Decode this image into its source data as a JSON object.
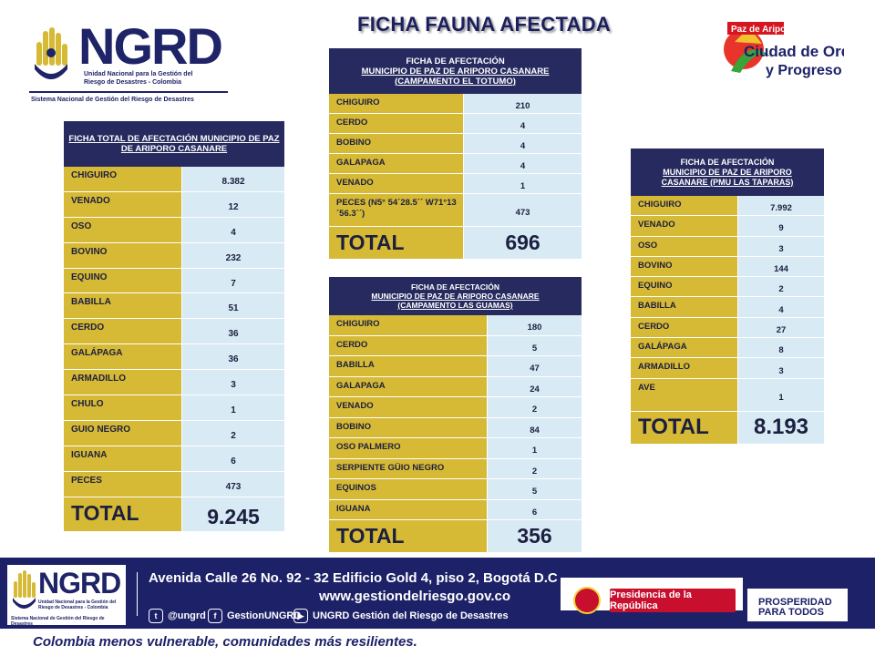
{
  "title": "FICHA FAUNA AFECTADA",
  "logo_top": {
    "word": "NGRD",
    "line1": "Unidad Nacional para la Gestión del",
    "line2": "Riesgo de Desastres - Colombia",
    "line3": "Sistema Nacional de Gestión del Riesgo de Desastres"
  },
  "city_logo": {
    "line1": "Paz de Ariporo",
    "line2": "Ciudad de Orden",
    "line3": "y Progreso"
  },
  "table_total": {
    "header": "FICHA TOTAL DE AFECTACIÓN MUNICIPIO DE PAZ DE ARIPORO CASANARE",
    "rows": [
      {
        "name": "CHIGUIRO",
        "value": "8.382"
      },
      {
        "name": "VENADO",
        "value": "12"
      },
      {
        "name": "OSO",
        "value": "4"
      },
      {
        "name": "BOVINO",
        "value": "232"
      },
      {
        "name": "EQUINO",
        "value": "7"
      },
      {
        "name": "BABILLA",
        "value": "51"
      },
      {
        "name": "CERDO",
        "value": "36"
      },
      {
        "name": "GALÁPAGA",
        "value": "36"
      },
      {
        "name": "ARMADILLO",
        "value": "3"
      },
      {
        "name": "CHULO",
        "value": "1"
      },
      {
        "name": "GUIO NEGRO",
        "value": "2"
      },
      {
        "name": "IGUANA",
        "value": "6"
      },
      {
        "name": "PECES",
        "value": "473"
      }
    ],
    "total_label": "TOTAL",
    "total_value": "9.245"
  },
  "table_totumo": {
    "header_line1": "FICHA DE AFECTACIÓN",
    "header_line2": "MUNICIPIO DE PAZ DE ARIPORO CASANARE",
    "header_line3": "(CAMPAMENTO EL TOTUMO)",
    "rows": [
      {
        "name": "CHIGUIRO",
        "value": "210"
      },
      {
        "name": "CERDO",
        "value": "4"
      },
      {
        "name": "BOBINO",
        "value": "4"
      },
      {
        "name": "GALAPAGA",
        "value": "4"
      },
      {
        "name": "VENADO",
        "value": "1"
      },
      {
        "name": "PECES (N5° 54´28.5´´ W71°13´56.3´´)",
        "value": "473"
      }
    ],
    "total_label": "TOTAL",
    "total_value": "696"
  },
  "table_guamas": {
    "header_line1": "FICHA DE AFECTACIÓN",
    "header_line2": "MUNICIPIO DE PAZ DE ARIPORO CASANARE",
    "header_line3": "(CAMPAMENTO LAS GUAMAS)",
    "rows": [
      {
        "name": "CHIGUIRO",
        "value": "180"
      },
      {
        "name": "CERDO",
        "value": "5"
      },
      {
        "name": "BABILLA",
        "value": "47"
      },
      {
        "name": "GALAPAGA",
        "value": "24"
      },
      {
        "name": "VENADO",
        "value": "2"
      },
      {
        "name": "BOBINO",
        "value": "84"
      },
      {
        "name": "OSO PALMERO",
        "value": "1"
      },
      {
        "name": "SERPIENTE GÜIO NEGRO",
        "value": "2"
      },
      {
        "name": "EQUINOS",
        "value": "5"
      },
      {
        "name": "IGUANA",
        "value": "6"
      }
    ],
    "total_label": "TOTAL",
    "total_value": "356"
  },
  "table_taparas": {
    "header_line1": "FICHA DE AFECTACIÓN",
    "header_line2": "MUNICIPIO DE PAZ DE ARIPORO",
    "header_line3": "CASANARE (PMU LAS TAPARAS)",
    "rows": [
      {
        "name": "CHIGUIRO",
        "value": "7.992"
      },
      {
        "name": "VENADO",
        "value": "9"
      },
      {
        "name": "OSO",
        "value": "3"
      },
      {
        "name": "BOVINO",
        "value": "144"
      },
      {
        "name": "EQUINO",
        "value": "2"
      },
      {
        "name": "BABILLA",
        "value": "4"
      },
      {
        "name": "CERDO",
        "value": "27"
      },
      {
        "name": "GALÁPAGA",
        "value": "8"
      },
      {
        "name": "ARMADILLO",
        "value": "3"
      },
      {
        "name": "AVE",
        "value": "1"
      }
    ],
    "total_label": "TOTAL",
    "total_value": "8.193"
  },
  "footer": {
    "logo_word": "NGRD",
    "logo_sub": "Unidad Nacional para la Gestión del Riesgo de Desastres - Colombia",
    "logo_sub2": "Sistema Nacional de Gestión del Riesgo de Desastres",
    "address": "Avenida Calle 26 No. 92 - 32 Edificio Gold 4, piso 2, Bogotá D.C",
    "website": "www.gestiondelriesgo.gov.co",
    "twitter": "@ungrd",
    "facebook": "GestionUNGRD",
    "youtube": "UNGRD Gestión del Riesgo de Desastres",
    "presidencia": "Presidencia de la República",
    "prosperidad_1": "PROSPERIDAD",
    "prosperidad_2": "PARA TODOS",
    "slogan": "Colombia menos vulnerable, comunidades más resilientes."
  },
  "colors": {
    "navy": "#262a5e",
    "gold": "#d6b934",
    "light_blue": "#d8eaf4",
    "red": "#c8102e"
  }
}
